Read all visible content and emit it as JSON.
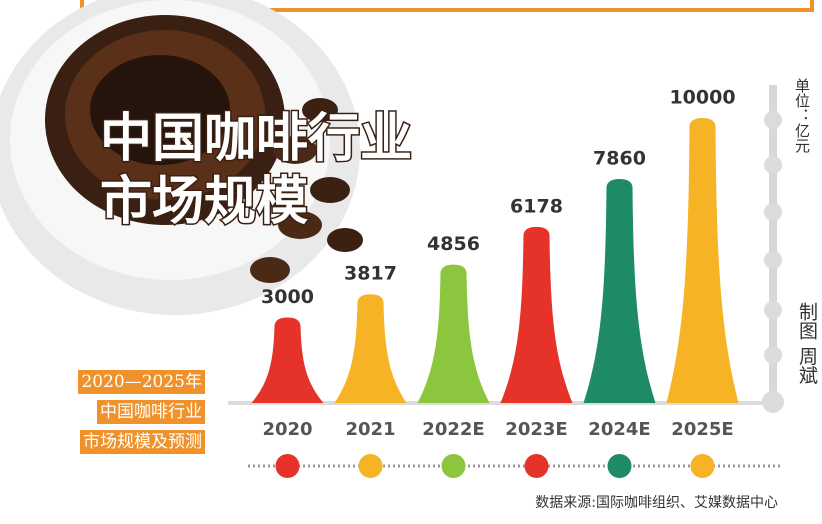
{
  "chart_data": {
    "type": "bell-bar",
    "title": [
      "中国咖啡行业",
      "市场规模"
    ],
    "subtitle": [
      "2020—2025年",
      "中国咖啡行业",
      "市场规模及预测"
    ],
    "unit": "单位：亿元",
    "credit": "制图 周斌",
    "source": "数据来源:国际咖啡组织、艾媒数据中心",
    "categories": [
      "2020",
      "2021",
      "2022E",
      "2023E",
      "2024E",
      "2025E"
    ],
    "values": [
      3000,
      3817,
      4856,
      6178,
      7860,
      10000
    ],
    "colors": [
      "#e6332a",
      "#f5b325",
      "#8cc63f",
      "#e6332a",
      "#1e8a68",
      "#f5b325"
    ]
  }
}
